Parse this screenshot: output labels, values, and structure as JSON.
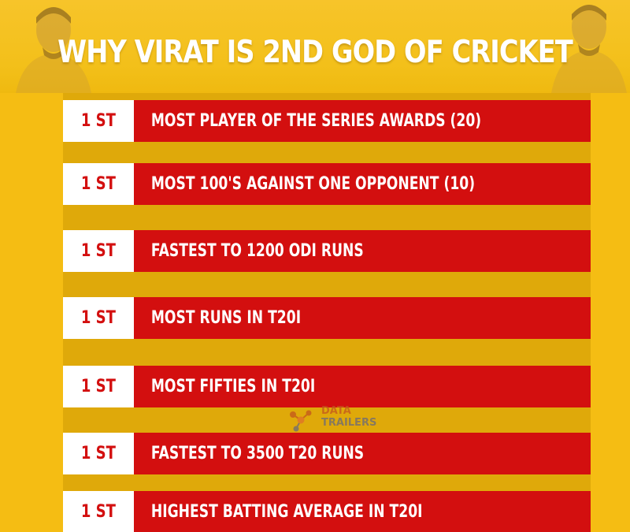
{
  "header": {
    "title": "WHY VIRAT IS 2ND GOD OF CRICKET"
  },
  "records": [
    {
      "rank": "1 ST",
      "text": "MOST PLAYER OF THE SERIES AWARDS (20)"
    },
    {
      "rank": "1 ST",
      "text": "MOST 100'S AGAINST ONE OPPONENT (10)"
    },
    {
      "rank": "1 ST",
      "text": "FASTEST TO 1200 ODI RUNS"
    },
    {
      "rank": "1 ST",
      "text": "MOST RUNS IN T20I"
    },
    {
      "rank": "1 ST",
      "text": "MOST FIFTIES IN T20I"
    },
    {
      "rank": "1 ST",
      "text": "FASTEST TO 3500 T20 RUNS"
    },
    {
      "rank": "1 ST",
      "text": "HIGHEST BATTING AVERAGE IN T20I"
    }
  ],
  "watermark": {
    "line1": "DATA",
    "line2": "TRAILERS"
  },
  "colors": {
    "background": "#f5bd13",
    "strip": "#dfa90a",
    "record_red": "#d30f0f",
    "rank_box": "#ffffff"
  }
}
